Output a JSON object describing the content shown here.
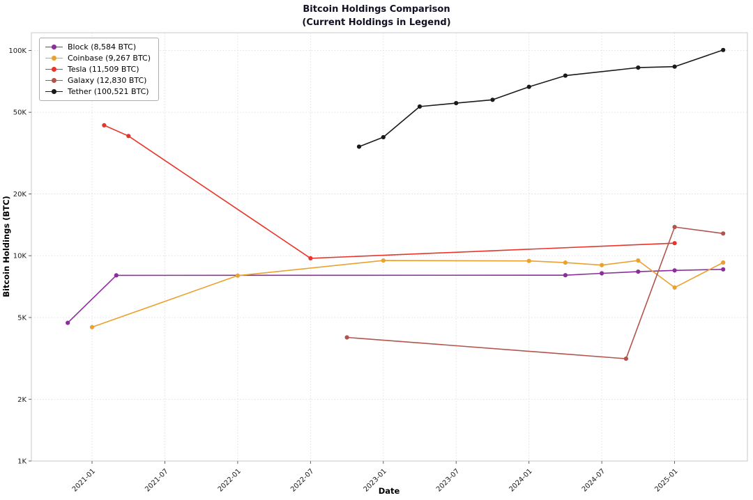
{
  "title": {
    "line1": "Bitcoin Holdings Comparison",
    "line2": "(Current Holdings in Legend)"
  },
  "chart_data": {
    "type": "line",
    "title": "Bitcoin Holdings Comparison (Current Holdings in Legend)",
    "xlabel": "Date",
    "ylabel": "Bitcoin Holdings (BTC)",
    "y_scale": "log",
    "ylim": [
      1000,
      122000
    ],
    "xlim": [
      "2020-08",
      "2025-07"
    ],
    "grid": true,
    "legend_position": "upper-left",
    "y_ticks": [
      {
        "value": 1000,
        "label": "1K"
      },
      {
        "value": 2000,
        "label": "2K"
      },
      {
        "value": 5000,
        "label": "5K"
      },
      {
        "value": 10000,
        "label": "10K"
      },
      {
        "value": 20000,
        "label": "20K"
      },
      {
        "value": 50000,
        "label": "50K"
      },
      {
        "value": 100000,
        "label": "100K"
      }
    ],
    "x_ticks": [
      "2021-01",
      "2021-07",
      "2022-01",
      "2022-07",
      "2023-01",
      "2023-07",
      "2024-01",
      "2024-07",
      "2025-01"
    ],
    "series": [
      {
        "id": "block",
        "label": "Block (8,584 BTC)",
        "color": "#8c2d9c",
        "points": [
          {
            "date": "2020-11",
            "btc": 4709
          },
          {
            "date": "2021-03",
            "btc": 8027
          },
          {
            "date": "2024-04",
            "btc": 8038
          },
          {
            "date": "2024-07",
            "btc": 8211
          },
          {
            "date": "2024-10",
            "btc": 8363
          },
          {
            "date": "2025-01",
            "btc": 8485
          },
          {
            "date": "2025-05",
            "btc": 8584
          }
        ]
      },
      {
        "id": "coinbase",
        "label": "Coinbase (9,267 BTC)",
        "color": "#eaa12f",
        "points": [
          {
            "date": "2021-01",
            "btc": 4487
          },
          {
            "date": "2022-01",
            "btc": 8000
          },
          {
            "date": "2023-01",
            "btc": 9480
          },
          {
            "date": "2024-01",
            "btc": 9430
          },
          {
            "date": "2024-04",
            "btc": 9260
          },
          {
            "date": "2024-07",
            "btc": 9000
          },
          {
            "date": "2024-10",
            "btc": 9480
          },
          {
            "date": "2025-01",
            "btc": 7000
          },
          {
            "date": "2025-05",
            "btc": 9267
          }
        ]
      },
      {
        "id": "tesla",
        "label": "Tesla (11,509 BTC)",
        "color": "#e8352b",
        "points": [
          {
            "date": "2021-02",
            "btc": 43200
          },
          {
            "date": "2021-04",
            "btc": 38300
          },
          {
            "date": "2022-07",
            "btc": 9720
          },
          {
            "date": "2025-01",
            "btc": 11509
          }
        ]
      },
      {
        "id": "galaxy",
        "label": "Galaxy (12,830 BTC)",
        "color": "#b2544c",
        "points": [
          {
            "date": "2022-10",
            "btc": 4000
          },
          {
            "date": "2024-09",
            "btc": 3150
          },
          {
            "date": "2025-01",
            "btc": 13800
          },
          {
            "date": "2025-05",
            "btc": 12830
          }
        ]
      },
      {
        "id": "tether",
        "label": "Tether (100,521 BTC)",
        "color": "#1a1a1a",
        "points": [
          {
            "date": "2022-11",
            "btc": 34000
          },
          {
            "date": "2023-01",
            "btc": 37800
          },
          {
            "date": "2023-04",
            "btc": 53300
          },
          {
            "date": "2023-07",
            "btc": 55400
          },
          {
            "date": "2023-10",
            "btc": 57500
          },
          {
            "date": "2024-01",
            "btc": 66500
          },
          {
            "date": "2024-04",
            "btc": 75400
          },
          {
            "date": "2024-10",
            "btc": 82500
          },
          {
            "date": "2025-01",
            "btc": 83400
          },
          {
            "date": "2025-05",
            "btc": 100521
          }
        ]
      }
    ]
  }
}
